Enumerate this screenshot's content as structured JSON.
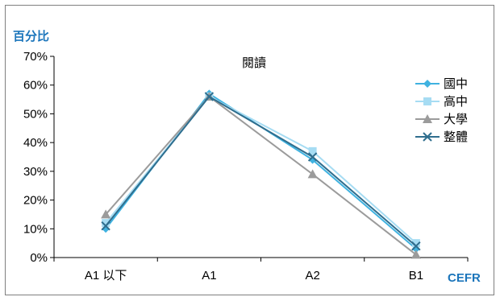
{
  "chart_data": {
    "type": "line",
    "title": "閱讀",
    "ylabel": "百分比",
    "xlabel": "CEFR",
    "categories": [
      "A1 以下",
      "A1",
      "A2",
      "B1"
    ],
    "ylim": [
      0,
      70
    ],
    "yticks": [
      0,
      10,
      20,
      30,
      40,
      50,
      60,
      70
    ],
    "ytick_suffix": "%",
    "grid": false,
    "legend_position": "top-right",
    "series": [
      {
        "name": "國中",
        "values": [
          10,
          57,
          34,
          3
        ],
        "color": "#3fb2e0",
        "marker": "diamond"
      },
      {
        "name": "高中",
        "values": [
          12,
          56,
          37,
          5
        ],
        "color": "#a6dcf3",
        "marker": "square"
      },
      {
        "name": "大學",
        "values": [
          15,
          56,
          29,
          1
        ],
        "color": "#9b9b9b",
        "marker": "triangle"
      },
      {
        "name": "整體",
        "values": [
          11,
          56,
          35,
          4
        ],
        "color": "#2f6e8e",
        "marker": "x"
      }
    ]
  }
}
